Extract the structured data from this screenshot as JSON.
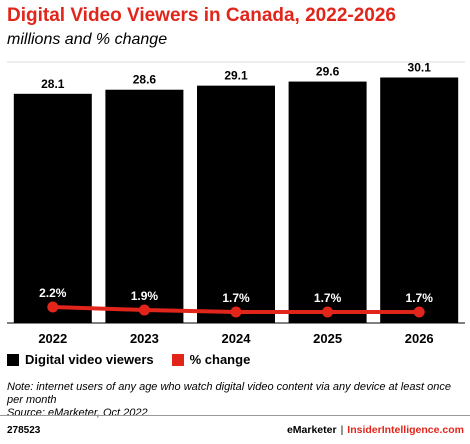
{
  "title": "Digital Video Viewers in Canada, 2022-2026",
  "subtitle": "millions and % change",
  "colors": {
    "bars": "#000000",
    "line": "#e1251b",
    "title": "#e1251b"
  },
  "chart_data": {
    "type": "bar",
    "categories": [
      "2022",
      "2023",
      "2024",
      "2025",
      "2026"
    ],
    "series": [
      {
        "name": "Digital video viewers",
        "type": "bar",
        "values": [
          28.1,
          28.6,
          29.1,
          29.6,
          30.1
        ],
        "labels": [
          "28.1",
          "28.6",
          "29.1",
          "29.6",
          "30.1"
        ]
      },
      {
        "name": "% change",
        "type": "line",
        "values": [
          2.2,
          1.9,
          1.7,
          1.7,
          1.7
        ],
        "labels": [
          "2.2%",
          "1.9%",
          "1.7%",
          "1.7%",
          "1.7%"
        ]
      }
    ]
  },
  "legend": [
    {
      "label": "Digital video viewers",
      "color": "#000000"
    },
    {
      "label": "% change",
      "color": "#e1251b"
    }
  ],
  "note": "Note: internet users of any age who watch digital video content via any device at least once per month",
  "source": "Source: eMarketer, Oct 2022",
  "footer": {
    "id": "278523",
    "brand1": "eMarketer",
    "separator": "|",
    "brand2": "InsiderIntelligence.com"
  }
}
